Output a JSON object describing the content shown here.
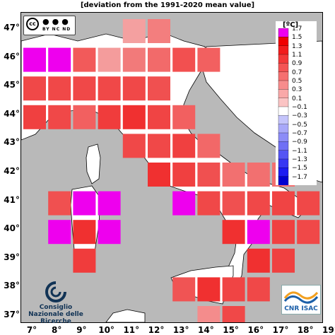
{
  "title": "[deviation from the 1991-2020 mean value]",
  "map": {
    "latitude_ticks": [
      "47°",
      "46°",
      "45°",
      "44°",
      "43°",
      "42°",
      "41°",
      "40°",
      "39°",
      "38°",
      "37°"
    ],
    "longitude_ticks": [
      "7°",
      "8°",
      "9°",
      "10°",
      "11°",
      "12°",
      "13°",
      "14°",
      "15°",
      "16°",
      "17°",
      "18°",
      "19°"
    ],
    "grid_cells": [
      {
        "lon": 11,
        "lat": 47,
        "color": "#f4a0a0"
      },
      {
        "lon": 12,
        "lat": 47,
        "color": "#f37e7e"
      },
      {
        "lon": 7,
        "lat": 46,
        "color": "#ee00ee"
      },
      {
        "lon": 8,
        "lat": 46,
        "color": "#ee00ee"
      },
      {
        "lon": 9,
        "lat": 46,
        "color": "#f25a5a"
      },
      {
        "lon": 10,
        "lat": 46,
        "color": "#f49c9c"
      },
      {
        "lon": 11,
        "lat": 46,
        "color": "#f27a7a"
      },
      {
        "lon": 12,
        "lat": 46,
        "color": "#f26a6a"
      },
      {
        "lon": 13,
        "lat": 46,
        "color": "#f25050"
      },
      {
        "lon": 14,
        "lat": 46,
        "color": "#f26060"
      },
      {
        "lon": 7,
        "lat": 45,
        "color": "#f04848"
      },
      {
        "lon": 8,
        "lat": 45,
        "color": "#f04848"
      },
      {
        "lon": 9,
        "lat": 45,
        "color": "#f04848"
      },
      {
        "lon": 10,
        "lat": 45,
        "color": "#f04848"
      },
      {
        "lon": 11,
        "lat": 45,
        "color": "#f04848"
      },
      {
        "lon": 12,
        "lat": 45,
        "color": "#f05050"
      },
      {
        "lon": 7,
        "lat": 44,
        "color": "#f04040"
      },
      {
        "lon": 8,
        "lat": 44,
        "color": "#f04848"
      },
      {
        "lon": 9,
        "lat": 44,
        "color": "#f26060"
      },
      {
        "lon": 10,
        "lat": 44,
        "color": "#f03c3c"
      },
      {
        "lon": 11,
        "lat": 44,
        "color": "#f03030"
      },
      {
        "lon": 12,
        "lat": 44,
        "color": "#f04444"
      },
      {
        "lon": 13,
        "lat": 44,
        "color": "#f26060"
      },
      {
        "lon": 11,
        "lat": 43,
        "color": "#f04848"
      },
      {
        "lon": 12,
        "lat": 43,
        "color": "#f04848"
      },
      {
        "lon": 13,
        "lat": 43,
        "color": "#f04040"
      },
      {
        "lon": 14,
        "lat": 43,
        "color": "#f26868"
      },
      {
        "lon": 12,
        "lat": 42,
        "color": "#f03030"
      },
      {
        "lon": 13,
        "lat": 42,
        "color": "#f04040"
      },
      {
        "lon": 14,
        "lat": 42,
        "color": "#f05050"
      },
      {
        "lon": 15,
        "lat": 42,
        "color": "#f27070"
      },
      {
        "lon": 16,
        "lat": 42,
        "color": "#f27070"
      },
      {
        "lon": 17,
        "lat": 42,
        "color": "#f27070"
      },
      {
        "lon": 8,
        "lat": 41,
        "color": "#f05050"
      },
      {
        "lon": 9,
        "lat": 41,
        "color": "#ee00ee"
      },
      {
        "lon": 10,
        "lat": 41,
        "color": "#ee00ee"
      },
      {
        "lon": 13,
        "lat": 41,
        "color": "#ee00ee"
      },
      {
        "lon": 14,
        "lat": 41,
        "color": "#f04848"
      },
      {
        "lon": 15,
        "lat": 41,
        "color": "#f05050"
      },
      {
        "lon": 16,
        "lat": 41,
        "color": "#f04848"
      },
      {
        "lon": 17,
        "lat": 41,
        "color": "#f04444"
      },
      {
        "lon": 18,
        "lat": 41,
        "color": "#f04848"
      },
      {
        "lon": 8,
        "lat": 40,
        "color": "#ee00ee"
      },
      {
        "lon": 9,
        "lat": 40,
        "color": "#f03030"
      },
      {
        "lon": 10,
        "lat": 40,
        "color": "#ee00ee"
      },
      {
        "lon": 15,
        "lat": 40,
        "color": "#f03030"
      },
      {
        "lon": 16,
        "lat": 40,
        "color": "#ee00ee"
      },
      {
        "lon": 17,
        "lat": 40,
        "color": "#f04040"
      },
      {
        "lon": 18,
        "lat": 40,
        "color": "#f04848"
      },
      {
        "lon": 9,
        "lat": 39,
        "color": "#f03c3c"
      },
      {
        "lon": 16,
        "lat": 39,
        "color": "#f03030"
      },
      {
        "lon": 17,
        "lat": 39,
        "color": "#f04040"
      },
      {
        "lon": 13,
        "lat": 38,
        "color": "#f05454"
      },
      {
        "lon": 14,
        "lat": 38,
        "color": "#f03030"
      },
      {
        "lon": 15,
        "lat": 38,
        "color": "#f04444"
      },
      {
        "lon": 16,
        "lat": 38,
        "color": "#f04848"
      },
      {
        "lon": 14,
        "lat": 37,
        "color": "#f48c8c"
      },
      {
        "lon": 15,
        "lat": 37,
        "color": "#f04848"
      }
    ]
  },
  "colorbar": {
    "unit": "[ºC]",
    "labels": [
      "1.7",
      "1.5",
      "1.3",
      "1.1",
      "0.9",
      "0.7",
      "0.5",
      "0.3",
      "0.1",
      "−0.1",
      "−0.3",
      "−0.5",
      "−0.7",
      "−0.9",
      "−1.1",
      "−1.3",
      "−1.5",
      "−1.7"
    ],
    "colors": [
      "#ee00ee",
      "#f00000",
      "#f21c1c",
      "#f33838",
      "#f45454",
      "#f57070",
      "#f78c8c",
      "#f9a8a8",
      "#fbc4c4",
      "#ffffff",
      "#c4c4fb",
      "#a8a8f9",
      "#8c8cf7",
      "#7070f5",
      "#5454f4",
      "#3838f3",
      "#1c1cf2",
      "#0000d0"
    ]
  },
  "logos": {
    "cc_text": "BY NC ND",
    "cc_symbol": "cc",
    "cnr_name": "Consiglio Nazionale delle Ricerche",
    "isac_name": "CNR ISAC"
  }
}
